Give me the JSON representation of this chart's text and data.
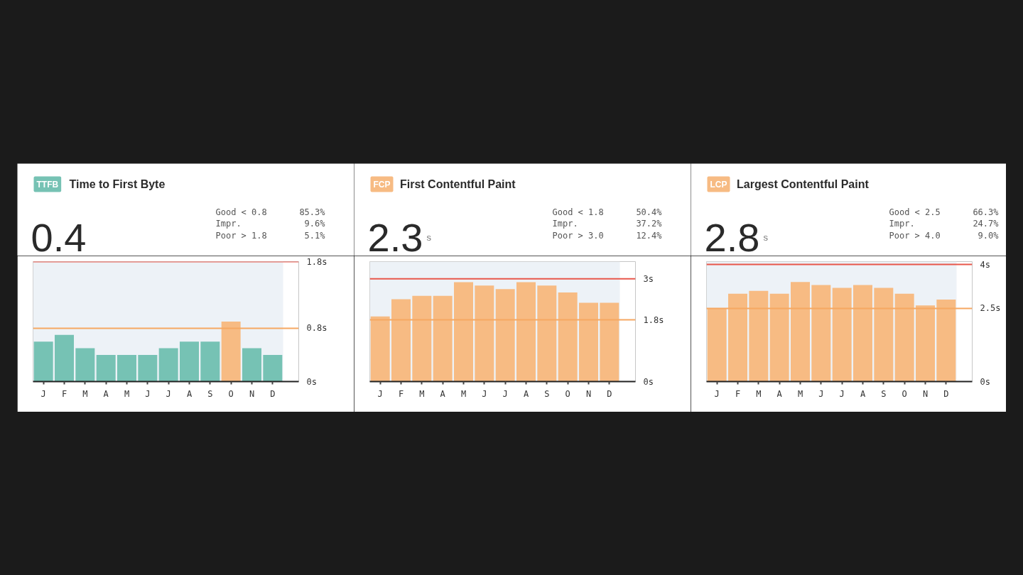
{
  "chart_data": [
    {
      "type": "bar",
      "title": "Time to First Byte",
      "subtitle": "0.4",
      "annotations": [
        "TTFB",
        "Good < 0.8",
        "85.3%",
        "Impr.",
        "9.6%",
        "Poor > 1.8",
        "5.1%"
      ],
      "categories": [
        "J",
        "F",
        "M",
        "A",
        "M",
        "J",
        "J",
        "A",
        "S",
        "O",
        "N",
        "D"
      ],
      "values": [
        0.6,
        0.7,
        0.5,
        0.4,
        0.4,
        0.4,
        0.5,
        0.6,
        0.6,
        0.9,
        0.5,
        0.4
      ],
      "colors": [
        "#76c2b4",
        "#76c2b4",
        "#76c2b4",
        "#76c2b4",
        "#76c2b4",
        "#76c2b4",
        "#76c2b4",
        "#76c2b4",
        "#76c2b4",
        "#f7bb83",
        "#76c2b4",
        "#76c2b4"
      ],
      "ylim": [
        0,
        1.8
      ],
      "yticks": [
        {
          "value": 0,
          "label": "0s"
        },
        {
          "value": 0.8,
          "label": "0.8s"
        },
        {
          "value": 1.8,
          "label": "1.8s"
        }
      ],
      "bands": [
        {
          "axis": "y",
          "from": 0,
          "to": 1.8,
          "color": "#edf2f7"
        }
      ],
      "ref_lines": [
        {
          "axis": "y",
          "value": 0.8,
          "color": "#f6a862"
        },
        {
          "axis": "y",
          "value": 1.8,
          "color": "#e8574b"
        }
      ]
    },
    {
      "type": "bar",
      "title": "First Contentful Paint",
      "subtitle": "2.3",
      "annotations": [
        "FCP",
        "Good < 1.8",
        "50.4%",
        "Impr.",
        "37.2%",
        "Poor > 3.0",
        "12.4%",
        "s"
      ],
      "categories": [
        "J",
        "F",
        "M",
        "A",
        "M",
        "J",
        "J",
        "A",
        "S",
        "O",
        "N",
        "D"
      ],
      "values": [
        1.9,
        2.4,
        2.5,
        2.5,
        2.9,
        2.8,
        2.7,
        2.9,
        2.8,
        2.6,
        2.3,
        2.3
      ],
      "colors": [
        "#f7bb83",
        "#f7bb83",
        "#f7bb83",
        "#f7bb83",
        "#f7bb83",
        "#f7bb83",
        "#f7bb83",
        "#f7bb83",
        "#f7bb83",
        "#f7bb83",
        "#f7bb83",
        "#f7bb83"
      ],
      "ylim": [
        0,
        3.5
      ],
      "yticks": [
        {
          "value": 0,
          "label": "0s"
        },
        {
          "value": 1.8,
          "label": "1.8s"
        },
        {
          "value": 3,
          "label": "3s"
        }
      ],
      "bands": [
        {
          "axis": "y",
          "from": 0,
          "to": 3.5,
          "color": "#edf2f7"
        }
      ],
      "ref_lines": [
        {
          "axis": "y",
          "value": 1.8,
          "color": "#f6a862"
        },
        {
          "axis": "y",
          "value": 3,
          "color": "#e8574b"
        }
      ]
    },
    {
      "type": "bar",
      "title": "Largest Contentful Paint",
      "subtitle": "2.8",
      "annotations": [
        "LCP",
        "Good < 2.5",
        "66.3%",
        "Impr.",
        "24.7%",
        "Poor > 4.0",
        "9.0%",
        "s"
      ],
      "categories": [
        "J",
        "F",
        "M",
        "A",
        "M",
        "J",
        "J",
        "A",
        "S",
        "O",
        "N",
        "D"
      ],
      "values": [
        2.5,
        3.0,
        3.1,
        3.0,
        3.4,
        3.3,
        3.2,
        3.3,
        3.2,
        3.0,
        2.6,
        2.8
      ],
      "colors": [
        "#f7bb83",
        "#f7bb83",
        "#f7bb83",
        "#f7bb83",
        "#f7bb83",
        "#f7bb83",
        "#f7bb83",
        "#f7bb83",
        "#f7bb83",
        "#f7bb83",
        "#f7bb83",
        "#f7bb83"
      ],
      "ylim": [
        0,
        4.1
      ],
      "yticks": [
        {
          "value": 0,
          "label": "0s"
        },
        {
          "value": 2.5,
          "label": "2.5s"
        },
        {
          "value": 4,
          "label": "4s"
        }
      ],
      "bands": [
        {
          "axis": "y",
          "from": 0,
          "to": 4.1,
          "color": "#edf2f7"
        }
      ],
      "ref_lines": [
        {
          "axis": "y",
          "value": 2.5,
          "color": "#f6a862"
        },
        {
          "axis": "y",
          "value": 4,
          "color": "#e8574b"
        }
      ]
    }
  ]
}
